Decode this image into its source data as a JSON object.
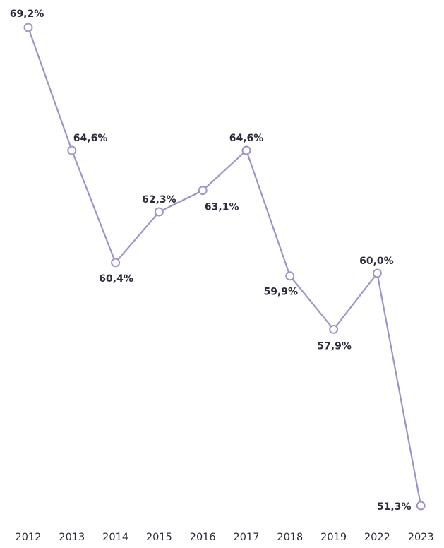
{
  "chart_data": {
    "type": "line",
    "categories": [
      "2012",
      "2013",
      "2014",
      "2015",
      "2016",
      "2017",
      "2018",
      "2019",
      "2022",
      "2023"
    ],
    "series": [
      {
        "values": [
          69.2,
          64.6,
          60.4,
          62.3,
          63.1,
          64.6,
          59.9,
          57.9,
          60.0,
          51.3
        ],
        "labels": [
          "69,2%",
          "64,6%",
          "60,4%",
          "62,3%",
          "63,1%",
          "64,6%",
          "59,9%",
          "57,9%",
          "60,0%",
          "51,3%"
        ]
      }
    ],
    "ylim": [
      51.3,
      69.2
    ],
    "grid": false,
    "legend": "none",
    "colors": {
      "line": "#9b95c9",
      "text": "#2e2b3a"
    }
  }
}
